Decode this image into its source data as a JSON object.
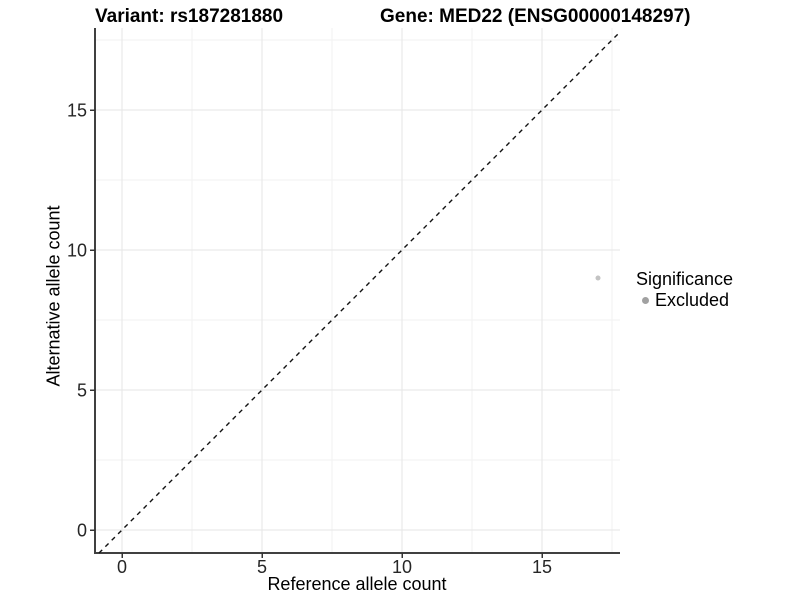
{
  "header": {
    "variant_title": "Variant: rs187281880",
    "gene_title": "Gene: MED22 (ENSG00000148297)"
  },
  "legend": {
    "title": "Significance",
    "items": [
      {
        "label": "Excluded",
        "color": "#a1a1a1"
      }
    ]
  },
  "chart_data": {
    "type": "scatter",
    "title": "Variant: rs187281880 | Gene: MED22 (ENSG00000148297)",
    "xlabel": "Reference allele count",
    "ylabel": "Alternative allele count",
    "xlim": [
      -0.96,
      17.79
    ],
    "ylim": [
      -0.82,
      17.93
    ],
    "x_ticks": [
      0,
      5,
      10,
      15
    ],
    "y_ticks": [
      0,
      5,
      10,
      15
    ],
    "x_minor_ticks": [
      2.5,
      7.5,
      12.5,
      17.5
    ],
    "y_minor_ticks": [
      2.5,
      7.5,
      12.5,
      17.5
    ],
    "grid": true,
    "legend_position": "right",
    "series": [
      {
        "name": "Excluded",
        "color": "#c3c3c3",
        "marker_radius": 2.5,
        "points": [
          {
            "x": 17,
            "y": 9
          }
        ]
      }
    ],
    "reference_line": {
      "slope": 1,
      "intercept": 0,
      "style": "dashed",
      "color": "#111111"
    }
  },
  "colors": {
    "background": "#ffffff",
    "grid_major": "#e6e6e6",
    "grid_minor": "#f2f2f2",
    "axis_line": "#404040",
    "tick_mark": "#333333",
    "tick_text": "#262626"
  }
}
